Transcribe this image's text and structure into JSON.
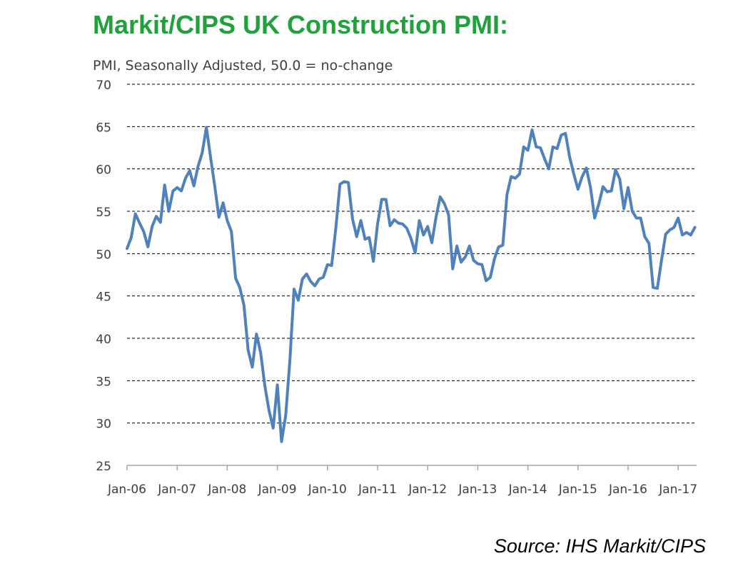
{
  "header": {
    "title": "Markit/CIPS UK Construction PMI:"
  },
  "footer": {
    "source": "Source: IHS Markit/CIPS"
  },
  "chart_data": {
    "type": "line",
    "title": "Markit/CIPS UK Construction PMI:",
    "ylabel": "PMI, Seasonally Adjusted, 50.0 = no-change",
    "xlabel": "",
    "ylim": [
      25,
      70
    ],
    "yticks": [
      25,
      30,
      35,
      40,
      45,
      50,
      55,
      60,
      65,
      70
    ],
    "xticks": [
      "Jan-06",
      "Jan-07",
      "Jan-08",
      "Jan-09",
      "Jan-10",
      "Jan-11",
      "Jan-12",
      "Jan-13",
      "Jan-14",
      "Jan-15",
      "Jan-16",
      "Jan-17"
    ],
    "grid": true,
    "color": "#4f81bd",
    "series": [
      {
        "values": [
          50.6,
          51.9,
          54.7,
          53.6,
          52.6,
          50.8,
          53.2,
          54.4,
          53.7,
          58.1,
          55.0,
          57.4,
          57.8,
          57.4,
          58.9,
          59.8,
          58.0,
          60.3,
          61.9,
          64.9,
          61.4,
          58.0,
          54.3,
          56.0,
          53.9,
          52.6,
          47.1,
          46.0,
          43.9,
          38.6,
          36.6,
          40.5,
          38.3,
          34.4,
          31.5,
          29.4,
          34.5,
          27.8,
          30.9,
          37.4,
          45.8,
          44.5,
          47.0,
          47.6,
          46.7,
          46.2,
          47.0,
          47.2,
          48.7,
          48.6,
          53.0,
          58.2,
          58.5,
          58.4,
          54.1,
          52.0,
          53.9,
          51.7,
          51.9,
          49.1,
          53.5,
          56.4,
          56.4,
          53.3,
          54.0,
          53.6,
          53.5,
          53.0,
          51.8,
          50.1,
          53.9,
          52.2,
          53.2,
          51.3,
          54.3,
          56.7,
          55.9,
          54.6,
          48.2,
          50.9,
          49.0,
          49.6,
          50.9,
          49.2,
          48.8,
          48.7,
          46.8,
          47.2,
          49.4,
          50.8,
          51.0,
          57.0,
          59.1,
          58.9,
          59.4,
          62.6,
          62.2,
          64.6,
          62.6,
          62.5,
          61.2,
          60.0,
          62.6,
          62.4,
          64.0,
          64.2,
          61.4,
          59.4,
          57.6,
          59.1,
          60.1,
          57.8,
          54.2,
          55.9,
          57.9,
          57.3,
          57.4,
          59.9,
          58.8,
          55.3,
          57.8,
          55.0,
          54.2,
          54.2,
          52.0,
          51.2,
          46.0,
          45.9,
          49.2,
          52.3,
          52.8,
          53.1,
          54.2,
          52.2,
          52.5,
          52.2,
          53.1
        ]
      }
    ]
  }
}
